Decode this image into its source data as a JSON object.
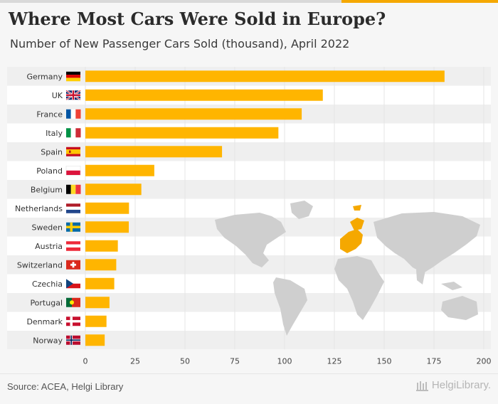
{
  "title": "Where Most Cars Were Sold in Europe?",
  "subtitle": "Number of New Passenger Cars Sold (thousand), April 2022",
  "source": "Source: ACEA, Helgi Library",
  "logo": "HelgiLibrary.",
  "colors": {
    "bar": "#ffb500",
    "map_land": "#cfcfcf",
    "map_europe": "#f5a800",
    "band": "#efefef"
  },
  "chart_data": {
    "type": "bar",
    "orientation": "horizontal",
    "title": "Where Most Cars Were Sold in Europe?",
    "subtitle": "Number of New Passenger Cars Sold (thousand), April 2022",
    "categories": [
      "Germany",
      "UK",
      "France",
      "Italy",
      "Spain",
      "Poland",
      "Belgium",
      "Netherlands",
      "Sweden",
      "Austria",
      "Switzerland",
      "Czechia",
      "Portugal",
      "Denmark",
      "Norway"
    ],
    "flags": [
      "flag-germany-icon",
      "flag-uk-icon",
      "flag-france-icon",
      "flag-italy-icon",
      "flag-spain-icon",
      "flag-poland-icon",
      "flag-belgium-icon",
      "flag-netherlands-icon",
      "flag-sweden-icon",
      "flag-austria-icon",
      "flag-switzerland-icon",
      "flag-czechia-icon",
      "flag-portugal-icon",
      "flag-denmark-icon",
      "flag-norway-icon"
    ],
    "values": [
      180.3,
      119.2,
      108.6,
      96.9,
      68.6,
      34.6,
      28.1,
      21.9,
      21.8,
      16.3,
      15.5,
      14.5,
      12.1,
      10.6,
      9.7
    ],
    "xlim": [
      0,
      200
    ],
    "xticks": [
      "0",
      "25",
      "50",
      "75",
      "100",
      "125",
      "150",
      "175",
      "200"
    ],
    "xlabel": "",
    "ylabel": "",
    "grid": true,
    "legend": "none"
  }
}
